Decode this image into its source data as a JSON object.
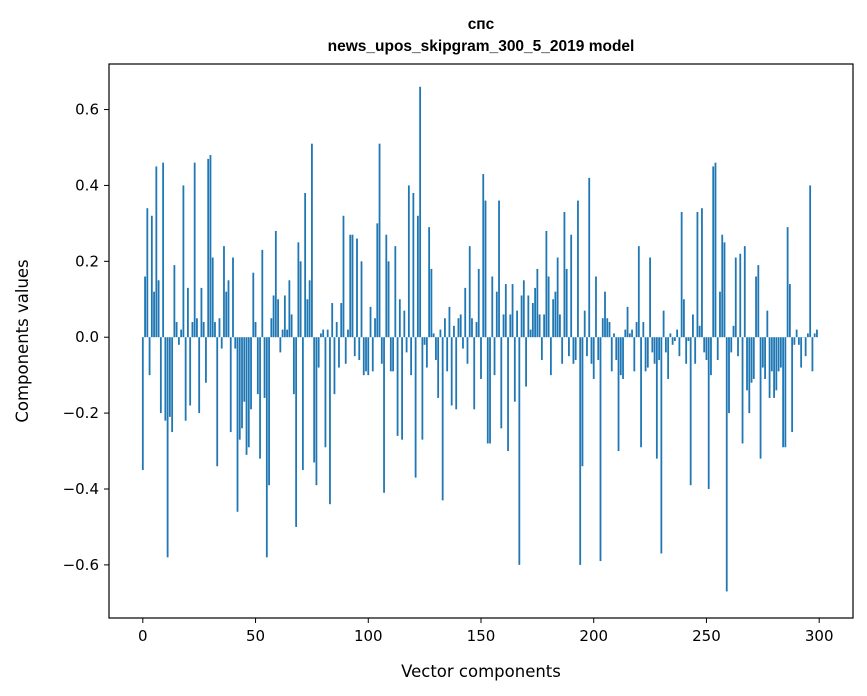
{
  "chart_data": {
    "type": "bar",
    "title": "спс",
    "subtitle": "news_upos_skipgram_300_5_2019 model",
    "xlabel": "Vector components",
    "ylabel": "Components values",
    "xlim": [
      -15,
      315
    ],
    "ylim": [
      -0.74,
      0.72
    ],
    "xticks": [
      0,
      50,
      100,
      150,
      200,
      250,
      300
    ],
    "yticks": [
      -0.6,
      -0.4,
      -0.2,
      0.0,
      0.2,
      0.4,
      0.6
    ],
    "xtick_labels": [
      "0",
      "50",
      "100",
      "150",
      "200",
      "250",
      "300"
    ],
    "ytick_labels": [
      "−0.6",
      "−0.4",
      "−0.2",
      "0.0",
      "0.2",
      "0.4",
      "0.6"
    ],
    "grid": false,
    "bar_color": "#1f77b4",
    "values": [
      -0.35,
      0.16,
      0.34,
      -0.1,
      0.32,
      0.12,
      0.45,
      0.15,
      -0.2,
      0.46,
      -0.22,
      -0.58,
      -0.21,
      -0.25,
      0.19,
      0.04,
      -0.02,
      0.02,
      0.4,
      -0.22,
      0.13,
      -0.18,
      0.04,
      0.46,
      0.05,
      -0.2,
      0.13,
      0.04,
      -0.12,
      0.47,
      0.48,
      0.21,
      0.04,
      -0.34,
      0.05,
      -0.03,
      0.24,
      0.12,
      0.15,
      -0.25,
      0.21,
      -0.03,
      -0.46,
      -0.27,
      -0.24,
      -0.17,
      -0.31,
      -0.29,
      -0.19,
      0.17,
      0.04,
      -0.15,
      -0.32,
      0.23,
      -0.16,
      -0.58,
      -0.39,
      0.05,
      0.11,
      0.28,
      0.1,
      -0.04,
      0.02,
      0.11,
      0.02,
      0.15,
      0.06,
      -0.15,
      -0.5,
      0.25,
      0.2,
      -0.35,
      0.38,
      0.1,
      0.15,
      0.51,
      -0.33,
      -0.39,
      -0.08,
      0.01,
      0.02,
      -0.29,
      0.02,
      -0.44,
      0.09,
      -0.15,
      0.04,
      -0.08,
      0.09,
      0.32,
      -0.07,
      0.02,
      0.27,
      0.27,
      -0.05,
      0.26,
      -0.06,
      0.2,
      -0.1,
      -0.09,
      -0.1,
      0.08,
      -0.09,
      0.05,
      0.3,
      0.51,
      -0.07,
      -0.41,
      0.27,
      0.2,
      -0.09,
      -0.09,
      0.24,
      -0.26,
      0.1,
      -0.27,
      0.07,
      -0.04,
      0.4,
      -0.1,
      0.38,
      -0.37,
      0.32,
      0.66,
      -0.27,
      -0.02,
      -0.08,
      0.29,
      0.18,
      0.01,
      -0.06,
      -0.16,
      0.02,
      -0.43,
      0.05,
      -0.09,
      0.08,
      -0.18,
      0.03,
      -0.19,
      0.05,
      0.06,
      -0.03,
      0.13,
      -0.07,
      0.24,
      0.05,
      -0.19,
      0.04,
      0.18,
      -0.11,
      0.43,
      0.36,
      -0.28,
      -0.28,
      0.16,
      -0.1,
      0.12,
      0.36,
      -0.24,
      0.06,
      0.14,
      -0.3,
      0.06,
      0.14,
      -0.17,
      0.07,
      -0.6,
      0.11,
      0.15,
      -0.13,
      0.11,
      0.02,
      0.09,
      0.13,
      0.18,
      0.06,
      -0.06,
      0.06,
      0.28,
      0.16,
      -0.1,
      0.1,
      0.12,
      0.21,
      0.06,
      -0.07,
      0.33,
      0.18,
      -0.05,
      0.27,
      -0.07,
      -0.06,
      0.36,
      -0.6,
      -0.34,
      0.07,
      -0.05,
      0.42,
      -0.07,
      -0.11,
      0.16,
      -0.06,
      -0.59,
      0.05,
      0.12,
      0.05,
      0.04,
      -0.09,
      0.01,
      -0.06,
      -0.3,
      -0.1,
      -0.11,
      0.02,
      0.08,
      0.01,
      0.02,
      -0.09,
      0.04,
      0.24,
      -0.29,
      0.04,
      -0.09,
      -0.08,
      0.21,
      -0.04,
      -0.07,
      -0.32,
      -0.06,
      -0.57,
      0.07,
      -0.04,
      -0.11,
      0.01,
      -0.02,
      -0.01,
      0.02,
      -0.05,
      0.33,
      0.1,
      -0.07,
      -0.01,
      -0.39,
      0.06,
      -0.07,
      0.33,
      0.03,
      0.34,
      -0.04,
      -0.06,
      -0.4,
      -0.1,
      0.45,
      0.46,
      -0.06,
      0.12,
      0.27,
      0.25,
      -0.67,
      -0.2,
      -0.04,
      0.03,
      0.21,
      -0.05,
      0.22,
      -0.28,
      0.24,
      -0.14,
      -0.2,
      -0.12,
      -0.11,
      0.16,
      0.19,
      -0.32,
      -0.08,
      -0.11,
      0.07,
      -0.16,
      -0.09,
      -0.16,
      -0.14,
      -0.09,
      -0.08,
      -0.29,
      -0.29,
      0.29,
      0.14,
      -0.25,
      -0.02,
      0.02,
      -0.02,
      -0.08,
      0.0,
      -0.05,
      0.01,
      0.4,
      -0.09,
      0.01,
      0.02
    ]
  }
}
